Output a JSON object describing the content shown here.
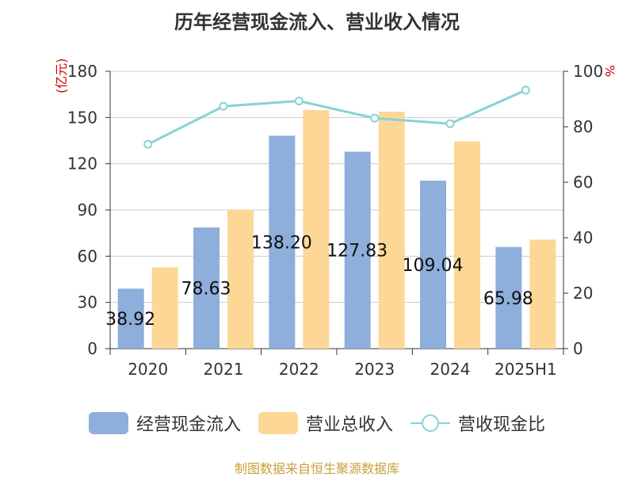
{
  "chart_data": {
    "type": "bar",
    "title": "历年经营现金流入、营业收入情况",
    "y_left_unit": "(亿元)",
    "y_right_unit": "%",
    "categories": [
      "2020",
      "2021",
      "2022",
      "2023",
      "2024",
      "2025H1"
    ],
    "y_left_ticks": [
      "0",
      "30",
      "60",
      "90",
      "120",
      "150",
      "180"
    ],
    "y_right_ticks": [
      "0",
      "20",
      "40",
      "60",
      "80",
      "100"
    ],
    "ylim_left": [
      0,
      180
    ],
    "ylim_right": [
      0,
      100
    ],
    "series": [
      {
        "name": "经营现金流入",
        "type": "bar",
        "axis": "left",
        "color": "#8eaedb",
        "values": [
          38.92,
          78.63,
          138.2,
          127.83,
          109.04,
          65.98
        ],
        "data_labels": [
          "38.92",
          "78.63",
          "138.20",
          "127.83",
          "109.04",
          "65.98"
        ]
      },
      {
        "name": "营业总收入",
        "type": "bar",
        "axis": "left",
        "color": "#fdd796",
        "values": [
          52.8,
          90.0,
          154.8,
          153.8,
          134.5,
          70.8
        ]
      },
      {
        "name": "营收现金比",
        "type": "line",
        "axis": "right",
        "color": "#86d3d6",
        "values": [
          73.7,
          87.4,
          89.3,
          83.1,
          81.1,
          93.2
        ]
      }
    ],
    "grid": true,
    "legend_position": "bottom",
    "source": "制图数据来自恒生聚源数据库"
  }
}
